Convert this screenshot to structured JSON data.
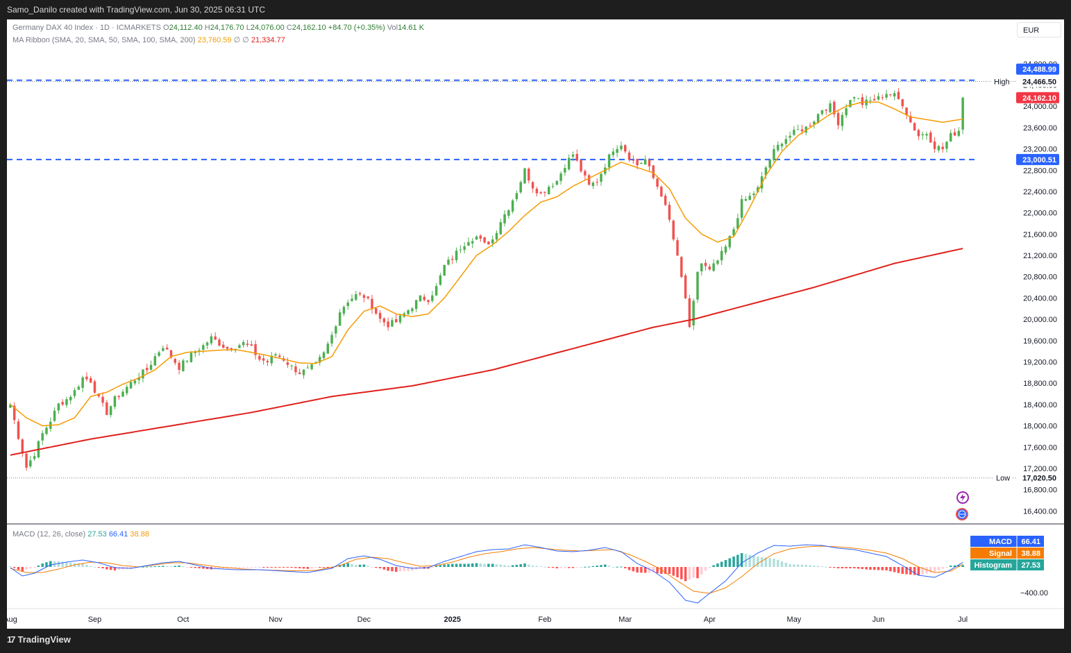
{
  "header": {
    "attribution": "Samo_Danilo created with TradingView.com, Jun 30, 2025 06:31 UTC"
  },
  "footer": {
    "brand": "TradingView",
    "logo_mark": "17"
  },
  "legend": {
    "symbol": "Germany DAX 40 Index · 1D · ICMARKETS",
    "open_label": "O",
    "open": "24,112.40",
    "high_label": "H",
    "high": "24,176.70",
    "low_label": "L",
    "low": "24,076.00",
    "close_label": "C",
    "close": "24,162.10",
    "change": "+84.70 (+0.35%)",
    "vol_label": "Vol",
    "vol": "14.61 K",
    "ma_label": "MA Ribbon (SMA, 20, SMA, 50, SMA, 100, SMA, 200)",
    "ma20": "23,760.59",
    "ma_sep1": "∅",
    "ma_sep2": "∅",
    "ma200": "21,334.77",
    "macd_label": "MACD (12, 26, close)",
    "macd_hist": "27.53",
    "macd_macd": "66.41",
    "macd_signal": "38.88"
  },
  "currency": "EUR",
  "colors": {
    "up": "#4caf50",
    "down": "#ef5350",
    "ma20": "#f59b00",
    "ma200": "#e0201a",
    "dashed_level": "#2962ff",
    "macd_line": "#2962ff",
    "signal_line": "#f57c00",
    "hist_pos_strong": "#26a69a",
    "hist_pos_weak": "#b2dfdb",
    "hist_neg_strong": "#ff5252",
    "hist_neg_weak": "#ffcdd2"
  },
  "badges": {
    "level_high": "24,488.99",
    "high_text": "High",
    "high_value": "24,466.50",
    "last_price": "24,162.10",
    "level_low": "23,000.51",
    "low_text": "Low",
    "low_value": "17,020.50",
    "macd_name": "MACD",
    "macd_value": "66.41",
    "signal_name": "Signal",
    "signal_value": "38.88",
    "hist_name": "Histogram",
    "hist_value": "27.53",
    "macd_axis_tick": "−400.00"
  },
  "chart_data": {
    "type": "candlestick",
    "title": "Germany DAX 40 Index · 1D · ICMARKETS",
    "y_ticks": [
      "24,800.00",
      "24,400.00",
      "24,000.00",
      "23,600.00",
      "23,200.00",
      "22,800.00",
      "22,400.00",
      "22,000.00",
      "21,600.00",
      "21,200.00",
      "20,800.00",
      "20,400.00",
      "20,000.00",
      "19,600.00",
      "19,200.00",
      "18,800.00",
      "18,400.00",
      "18,000.00",
      "17,600.00",
      "17,200.00",
      "16,800.00",
      "16,400.00"
    ],
    "y_tick_values": [
      24800,
      24400,
      24000,
      23600,
      23200,
      22800,
      22400,
      22000,
      21600,
      21200,
      20800,
      20400,
      20000,
      19600,
      19200,
      18800,
      18400,
      18000,
      17600,
      17200,
      16800,
      16400
    ],
    "x_ticks": [
      "Aug",
      "Sep",
      "Oct",
      "Nov",
      "Dec",
      "2025",
      "Feb",
      "Mar",
      "Apr",
      "May",
      "Jun",
      "Jul"
    ],
    "x_tick_days": [
      0,
      21,
      43,
      66,
      88,
      110,
      133,
      153,
      174,
      195,
      216,
      237
    ],
    "days_total": 238,
    "ylim": [
      16300,
      24980
    ],
    "horizontal_levels": [
      24488.99,
      23000.51
    ],
    "high_value": 24466.5,
    "low_value": 17020.5,
    "price_anchors": [
      [
        0,
        18400
      ],
      [
        2,
        17800
      ],
      [
        4,
        17220
      ],
      [
        6,
        17480
      ],
      [
        8,
        17850
      ],
      [
        10,
        18100
      ],
      [
        12,
        18400
      ],
      [
        14,
        18500
      ],
      [
        16,
        18650
      ],
      [
        18,
        18900
      ],
      [
        20,
        18850
      ],
      [
        22,
        18500
      ],
      [
        24,
        18250
      ],
      [
        26,
        18500
      ],
      [
        28,
        18650
      ],
      [
        30,
        18800
      ],
      [
        32,
        18950
      ],
      [
        34,
        19050
      ],
      [
        36,
        19300
      ],
      [
        38,
        19500
      ],
      [
        40,
        19300
      ],
      [
        42,
        19100
      ],
      [
        44,
        19250
      ],
      [
        46,
        19400
      ],
      [
        48,
        19500
      ],
      [
        50,
        19650
      ],
      [
        52,
        19550
      ],
      [
        54,
        19450
      ],
      [
        56,
        19500
      ],
      [
        58,
        19550
      ],
      [
        60,
        19450
      ],
      [
        62,
        19250
      ],
      [
        64,
        19200
      ],
      [
        66,
        19350
      ],
      [
        68,
        19250
      ],
      [
        70,
        19100
      ],
      [
        72,
        19000
      ],
      [
        74,
        19050
      ],
      [
        76,
        19150
      ],
      [
        78,
        19350
      ],
      [
        80,
        19700
      ],
      [
        82,
        20150
      ],
      [
        84,
        20350
      ],
      [
        86,
        20450
      ],
      [
        88,
        20430
      ],
      [
        90,
        20250
      ],
      [
        92,
        20000
      ],
      [
        94,
        19900
      ],
      [
        96,
        19950
      ],
      [
        98,
        20100
      ],
      [
        100,
        20250
      ],
      [
        102,
        20400
      ],
      [
        104,
        20380
      ],
      [
        106,
        20600
      ],
      [
        108,
        21000
      ],
      [
        110,
        21150
      ],
      [
        112,
        21350
      ],
      [
        114,
        21500
      ],
      [
        116,
        21550
      ],
      [
        118,
        21400
      ],
      [
        120,
        21500
      ],
      [
        122,
        21850
      ],
      [
        124,
        22100
      ],
      [
        126,
        22400
      ],
      [
        128,
        22800
      ],
      [
        130,
        22500
      ],
      [
        132,
        22350
      ],
      [
        134,
        22500
      ],
      [
        136,
        22600
      ],
      [
        138,
        22900
      ],
      [
        140,
        23100
      ],
      [
        142,
        22800
      ],
      [
        144,
        22500
      ],
      [
        146,
        22600
      ],
      [
        148,
        22900
      ],
      [
        150,
        23200
      ],
      [
        152,
        23300
      ],
      [
        154,
        23050
      ],
      [
        156,
        22900
      ],
      [
        158,
        23000
      ],
      [
        160,
        22650
      ],
      [
        162,
        22350
      ],
      [
        164,
        21850
      ],
      [
        166,
        21150
      ],
      [
        168,
        20400
      ],
      [
        169,
        19800
      ],
      [
        170,
        20300
      ],
      [
        171,
        20900
      ],
      [
        172,
        21050
      ],
      [
        174,
        20900
      ],
      [
        176,
        21100
      ],
      [
        178,
        21350
      ],
      [
        180,
        21700
      ],
      [
        182,
        22200
      ],
      [
        184,
        22300
      ],
      [
        186,
        22450
      ],
      [
        188,
        22850
      ],
      [
        190,
        23150
      ],
      [
        192,
        23350
      ],
      [
        194,
        23450
      ],
      [
        196,
        23550
      ],
      [
        198,
        23600
      ],
      [
        200,
        23750
      ],
      [
        202,
        23950
      ],
      [
        204,
        24000
      ],
      [
        206,
        23700
      ],
      [
        208,
        24000
      ],
      [
        210,
        24200
      ],
      [
        212,
        24050
      ],
      [
        214,
        24100
      ],
      [
        216,
        24150
      ],
      [
        218,
        24250
      ],
      [
        220,
        24200
      ],
      [
        222,
        24050
      ],
      [
        224,
        23700
      ],
      [
        226,
        23450
      ],
      [
        228,
        23500
      ],
      [
        230,
        23250
      ],
      [
        232,
        23200
      ],
      [
        234,
        23450
      ],
      [
        236,
        23550
      ],
      [
        237,
        24160
      ]
    ],
    "ma20_anchors": [
      [
        0,
        18400
      ],
      [
        4,
        18150
      ],
      [
        8,
        18000
      ],
      [
        12,
        18020
      ],
      [
        16,
        18150
      ],
      [
        20,
        18550
      ],
      [
        24,
        18630
      ],
      [
        28,
        18780
      ],
      [
        32,
        18900
      ],
      [
        36,
        19050
      ],
      [
        40,
        19300
      ],
      [
        44,
        19380
      ],
      [
        48,
        19400
      ],
      [
        52,
        19420
      ],
      [
        56,
        19430
      ],
      [
        60,
        19380
      ],
      [
        64,
        19320
      ],
      [
        68,
        19250
      ],
      [
        72,
        19180
      ],
      [
        76,
        19170
      ],
      [
        80,
        19300
      ],
      [
        84,
        19800
      ],
      [
        88,
        20150
      ],
      [
        92,
        20250
      ],
      [
        96,
        20100
      ],
      [
        100,
        20050
      ],
      [
        104,
        20100
      ],
      [
        108,
        20400
      ],
      [
        112,
        20800
      ],
      [
        116,
        21200
      ],
      [
        120,
        21400
      ],
      [
        124,
        21650
      ],
      [
        128,
        21950
      ],
      [
        132,
        22200
      ],
      [
        136,
        22300
      ],
      [
        140,
        22500
      ],
      [
        144,
        22650
      ],
      [
        148,
        22800
      ],
      [
        152,
        22950
      ],
      [
        156,
        22850
      ],
      [
        160,
        22750
      ],
      [
        164,
        22450
      ],
      [
        168,
        21900
      ],
      [
        172,
        21600
      ],
      [
        176,
        21450
      ],
      [
        180,
        21550
      ],
      [
        184,
        22100
      ],
      [
        188,
        22700
      ],
      [
        192,
        23150
      ],
      [
        196,
        23450
      ],
      [
        200,
        23650
      ],
      [
        204,
        23850
      ],
      [
        208,
        24000
      ],
      [
        212,
        24080
      ],
      [
        216,
        24080
      ],
      [
        220,
        23950
      ],
      [
        224,
        23800
      ],
      [
        228,
        23750
      ],
      [
        232,
        23700
      ],
      [
        237,
        23760
      ]
    ],
    "ma200_anchors": [
      [
        0,
        17450
      ],
      [
        20,
        17750
      ],
      [
        40,
        18000
      ],
      [
        60,
        18250
      ],
      [
        80,
        18550
      ],
      [
        100,
        18750
      ],
      [
        120,
        19050
      ],
      [
        140,
        19450
      ],
      [
        160,
        19850
      ],
      [
        170,
        20000
      ],
      [
        180,
        20200
      ],
      [
        200,
        20600
      ],
      [
        220,
        21050
      ],
      [
        237,
        21330
      ]
    ],
    "macd_anchors": [
      [
        0,
        -10
      ],
      [
        3,
        -130
      ],
      [
        6,
        -90
      ],
      [
        10,
        30
      ],
      [
        14,
        70
      ],
      [
        18,
        100
      ],
      [
        22,
        60
      ],
      [
        26,
        -10
      ],
      [
        30,
        -20
      ],
      [
        34,
        20
      ],
      [
        38,
        60
      ],
      [
        42,
        80
      ],
      [
        46,
        30
      ],
      [
        50,
        -20
      ],
      [
        56,
        -40
      ],
      [
        62,
        -40
      ],
      [
        68,
        -60
      ],
      [
        74,
        -80
      ],
      [
        80,
        -20
      ],
      [
        84,
        120
      ],
      [
        88,
        160
      ],
      [
        92,
        110
      ],
      [
        96,
        20
      ],
      [
        100,
        -20
      ],
      [
        104,
        -10
      ],
      [
        108,
        80
      ],
      [
        112,
        150
      ],
      [
        116,
        220
      ],
      [
        120,
        250
      ],
      [
        124,
        260
      ],
      [
        128,
        320
      ],
      [
        132,
        280
      ],
      [
        136,
        230
      ],
      [
        140,
        220
      ],
      [
        144,
        240
      ],
      [
        148,
        280
      ],
      [
        152,
        220
      ],
      [
        156,
        50
      ],
      [
        160,
        -60
      ],
      [
        164,
        -220
      ],
      [
        168,
        -480
      ],
      [
        171,
        -520
      ],
      [
        174,
        -380
      ],
      [
        178,
        -200
      ],
      [
        182,
        60
      ],
      [
        186,
        200
      ],
      [
        190,
        310
      ],
      [
        194,
        300
      ],
      [
        198,
        320
      ],
      [
        202,
        310
      ],
      [
        206,
        270
      ],
      [
        210,
        250
      ],
      [
        214,
        200
      ],
      [
        218,
        150
      ],
      [
        222,
        20
      ],
      [
        226,
        -120
      ],
      [
        230,
        -150
      ],
      [
        234,
        -40
      ],
      [
        237,
        66
      ]
    ],
    "signal_anchors": [
      [
        0,
        -20
      ],
      [
        4,
        -80
      ],
      [
        8,
        -80
      ],
      [
        12,
        -30
      ],
      [
        16,
        30
      ],
      [
        20,
        70
      ],
      [
        24,
        60
      ],
      [
        28,
        20
      ],
      [
        32,
        0
      ],
      [
        36,
        30
      ],
      [
        40,
        60
      ],
      [
        44,
        60
      ],
      [
        48,
        30
      ],
      [
        52,
        0
      ],
      [
        58,
        -30
      ],
      [
        64,
        -45
      ],
      [
        70,
        -55
      ],
      [
        76,
        -50
      ],
      [
        82,
        20
      ],
      [
        86,
        110
      ],
      [
        90,
        140
      ],
      [
        94,
        120
      ],
      [
        98,
        60
      ],
      [
        102,
        10
      ],
      [
        106,
        20
      ],
      [
        110,
        70
      ],
      [
        114,
        140
      ],
      [
        118,
        190
      ],
      [
        122,
        220
      ],
      [
        126,
        260
      ],
      [
        130,
        280
      ],
      [
        134,
        260
      ],
      [
        138,
        240
      ],
      [
        142,
        230
      ],
      [
        146,
        240
      ],
      [
        150,
        250
      ],
      [
        154,
        180
      ],
      [
        158,
        80
      ],
      [
        162,
        -40
      ],
      [
        166,
        -200
      ],
      [
        170,
        -350
      ],
      [
        174,
        -380
      ],
      [
        178,
        -300
      ],
      [
        182,
        -140
      ],
      [
        186,
        50
      ],
      [
        190,
        190
      ],
      [
        194,
        260
      ],
      [
        198,
        290
      ],
      [
        202,
        300
      ],
      [
        206,
        290
      ],
      [
        210,
        270
      ],
      [
        214,
        240
      ],
      [
        218,
        200
      ],
      [
        222,
        120
      ],
      [
        226,
        0
      ],
      [
        230,
        -80
      ],
      [
        234,
        -60
      ],
      [
        237,
        39
      ]
    ]
  }
}
